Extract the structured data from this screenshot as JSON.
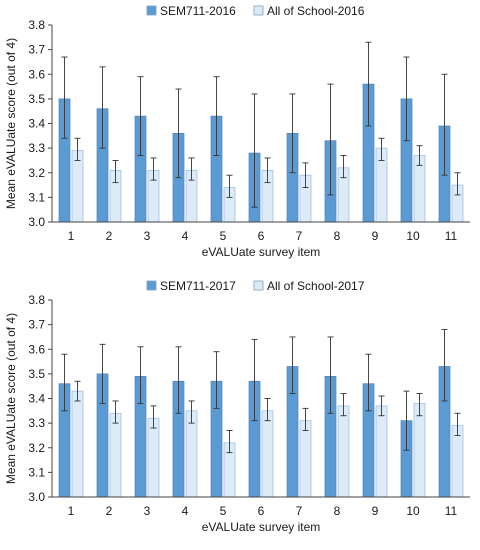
{
  "chart_data": [
    {
      "type": "bar",
      "xlabel": "eVALUate survey item",
      "ylabel": "Mean eVALUate score (out of 4)",
      "ylim": [
        3.0,
        3.8
      ],
      "yticks": [
        3.0,
        3.1,
        3.2,
        3.3,
        3.4,
        3.5,
        3.6,
        3.7,
        3.8
      ],
      "ytick_labels": [
        "3.0",
        "3.1",
        "3.2",
        "3.3",
        "3.4",
        "3.5",
        "3.6",
        "3.7",
        "3.8"
      ],
      "legend_position": "top",
      "grid": false,
      "error_bars": true,
      "categories": [
        "1",
        "2",
        "3",
        "4",
        "5",
        "6",
        "7",
        "8",
        "9",
        "10",
        "11"
      ],
      "series": [
        {
          "name": "SEM711-2016",
          "color": "#5b9bd5",
          "values": [
            3.5,
            3.46,
            3.43,
            3.36,
            3.43,
            3.28,
            3.36,
            3.33,
            3.56,
            3.5,
            3.39
          ],
          "error_high": [
            3.67,
            3.63,
            3.59,
            3.54,
            3.59,
            3.52,
            3.52,
            3.56,
            3.73,
            3.67,
            3.6
          ],
          "error_low": [
            3.34,
            3.3,
            3.27,
            3.18,
            3.27,
            3.06,
            3.2,
            3.11,
            3.39,
            3.33,
            3.19
          ]
        },
        {
          "name": "All of School-2016",
          "color": "#ddebf7",
          "values": [
            3.29,
            3.21,
            3.21,
            3.21,
            3.14,
            3.21,
            3.19,
            3.22,
            3.3,
            3.27,
            3.15
          ],
          "error_high": [
            3.34,
            3.25,
            3.26,
            3.26,
            3.19,
            3.26,
            3.24,
            3.27,
            3.34,
            3.31,
            3.2
          ],
          "error_low": [
            3.25,
            3.16,
            3.17,
            3.17,
            3.1,
            3.16,
            3.14,
            3.18,
            3.25,
            3.23,
            3.11
          ]
        }
      ]
    },
    {
      "type": "bar",
      "xlabel": "eVALUate survey item",
      "ylabel": "Mean eVALUate score (out of 4)",
      "ylim": [
        3.0,
        3.8
      ],
      "yticks": [
        3.0,
        3.1,
        3.2,
        3.3,
        3.4,
        3.5,
        3.6,
        3.7,
        3.8
      ],
      "ytick_labels": [
        "3.0",
        "3.1",
        "3.2",
        "3.3",
        "3.4",
        "3.5",
        "3.6",
        "3.7",
        "3.8"
      ],
      "legend_position": "top",
      "grid": false,
      "error_bars": true,
      "categories": [
        "1",
        "2",
        "3",
        "4",
        "5",
        "6",
        "7",
        "8",
        "9",
        "10",
        "11"
      ],
      "series": [
        {
          "name": "SEM711-2017",
          "color": "#5b9bd5",
          "values": [
            3.46,
            3.5,
            3.49,
            3.47,
            3.47,
            3.47,
            3.53,
            3.49,
            3.46,
            3.31,
            3.53
          ],
          "error_high": [
            3.58,
            3.62,
            3.61,
            3.61,
            3.59,
            3.64,
            3.65,
            3.65,
            3.58,
            3.43,
            3.68
          ],
          "error_low": [
            3.35,
            3.38,
            3.38,
            3.34,
            3.36,
            3.31,
            3.42,
            3.34,
            3.35,
            3.19,
            3.39
          ]
        },
        {
          "name": "All of School-2017",
          "color": "#ddebf7",
          "values": [
            3.43,
            3.34,
            3.32,
            3.35,
            3.22,
            3.35,
            3.31,
            3.37,
            3.37,
            3.38,
            3.29
          ],
          "error_high": [
            3.47,
            3.39,
            3.37,
            3.39,
            3.27,
            3.4,
            3.36,
            3.42,
            3.41,
            3.42,
            3.34
          ],
          "error_low": [
            3.39,
            3.3,
            3.28,
            3.3,
            3.18,
            3.31,
            3.27,
            3.33,
            3.33,
            3.33,
            3.25
          ]
        }
      ]
    }
  ]
}
